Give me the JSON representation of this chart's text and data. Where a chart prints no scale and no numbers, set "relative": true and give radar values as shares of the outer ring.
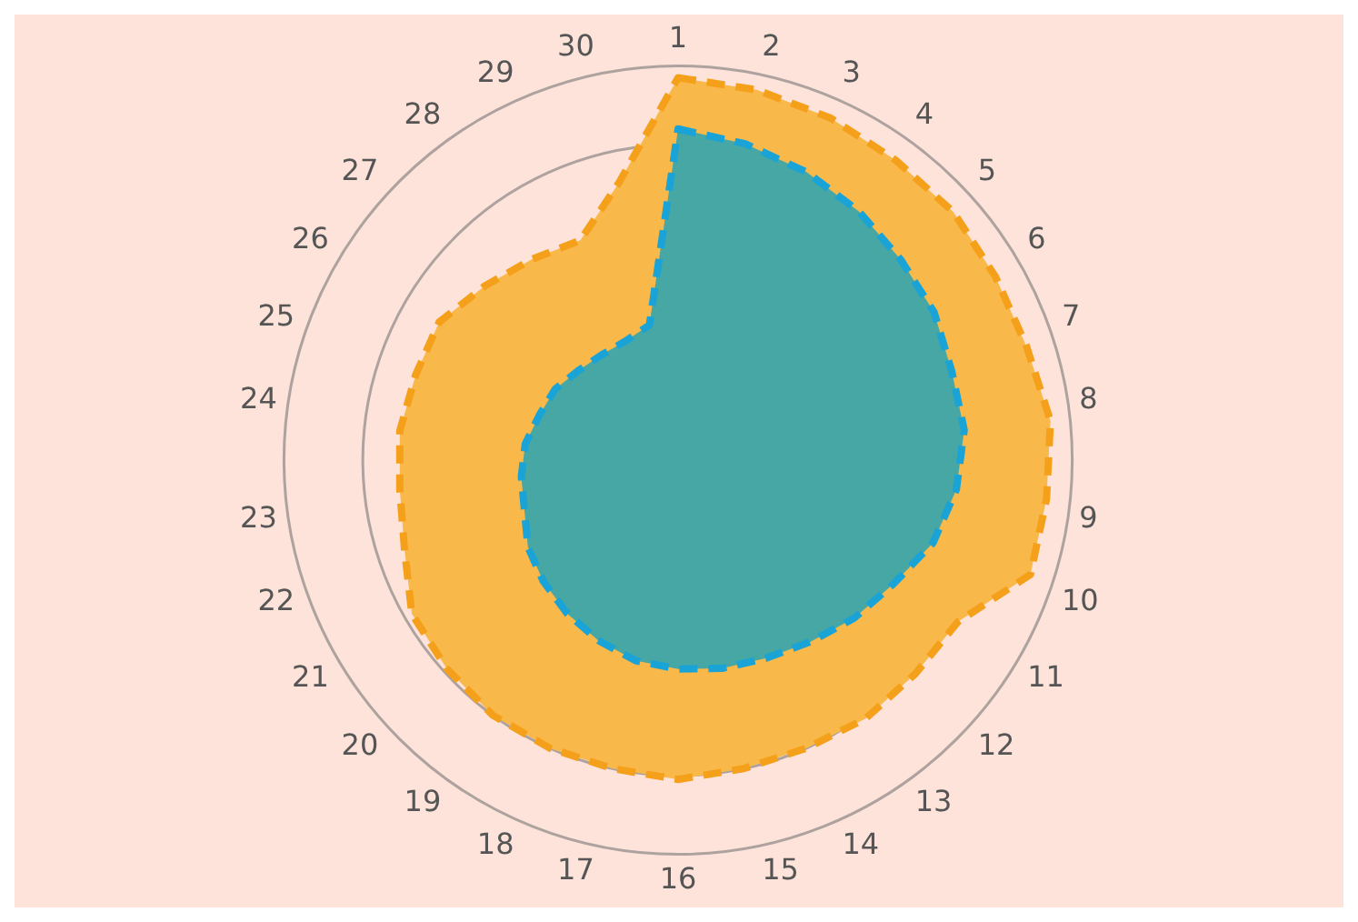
{
  "chart_data": {
    "type": "radar",
    "relative": true,
    "categories": [
      "1",
      "2",
      "3",
      "4",
      "5",
      "6",
      "7",
      "8",
      "9",
      "10",
      "11",
      "12",
      "13",
      "14",
      "15",
      "16",
      "17",
      "18",
      "19",
      "20",
      "21",
      "22",
      "23",
      "24",
      "25",
      "26",
      "27",
      "28",
      "29",
      "30"
    ],
    "series": [
      {
        "color": "#f9b84a",
        "values": [
          0.97,
          0.96,
          0.95,
          0.94,
          0.94,
          0.93,
          0.93,
          0.95,
          0.94,
          0.94,
          0.82,
          0.81,
          0.81,
          0.8,
          0.8,
          0.81,
          0.8,
          0.8,
          0.8,
          0.79,
          0.78,
          0.73,
          0.71,
          0.71,
          0.7,
          0.7,
          0.66,
          0.63,
          0.61,
          0.72
        ]
      },
      {
        "color": "#47a7a5",
        "values": [
          0.84,
          0.82,
          0.8,
          0.78,
          0.76,
          0.75,
          0.73,
          0.73,
          0.71,
          0.68,
          0.63,
          0.6,
          0.57,
          0.55,
          0.54,
          0.53,
          0.52,
          0.5,
          0.48,
          0.46,
          0.44,
          0.41,
          0.4,
          0.39,
          0.37,
          0.36,
          0.34,
          0.33,
          0.33,
          0.35
        ]
      }
    ],
    "grid": true,
    "legend": false,
    "marker": "none",
    "line_style": "dashed"
  }
}
